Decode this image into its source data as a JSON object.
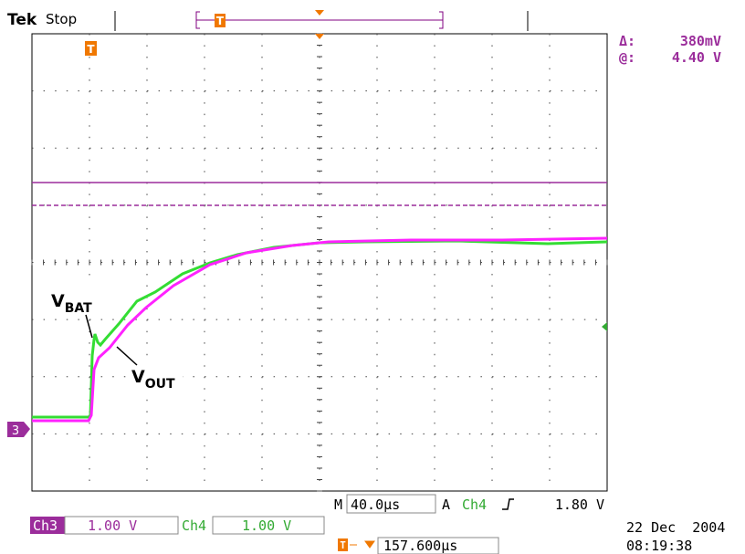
{
  "header": {
    "brand": "Tek",
    "status": "Stop",
    "trigger_marker": "T"
  },
  "cursor_readout": {
    "delta_label": "Δ:",
    "delta_value": "380mV",
    "at_label": "@:",
    "at_value": "4.40 V"
  },
  "trace_labels": {
    "vbat_main": "V",
    "vbat_sub": "BAT",
    "vout_main": "V",
    "vout_sub": "OUT",
    "channel_marker": "3"
  },
  "timebase": {
    "m_label": "M",
    "m_value": "40.0µs",
    "a_label": "A",
    "trigger_channel": "Ch4",
    "trigger_level": "1.80 V"
  },
  "channels": [
    {
      "name": "Ch3",
      "scale": "1.00 V"
    },
    {
      "name": "Ch4",
      "scale": "1.00 V"
    }
  ],
  "trigger_position": "157.600µs",
  "date": "22 Dec  2004",
  "time": "08:19:38"
}
